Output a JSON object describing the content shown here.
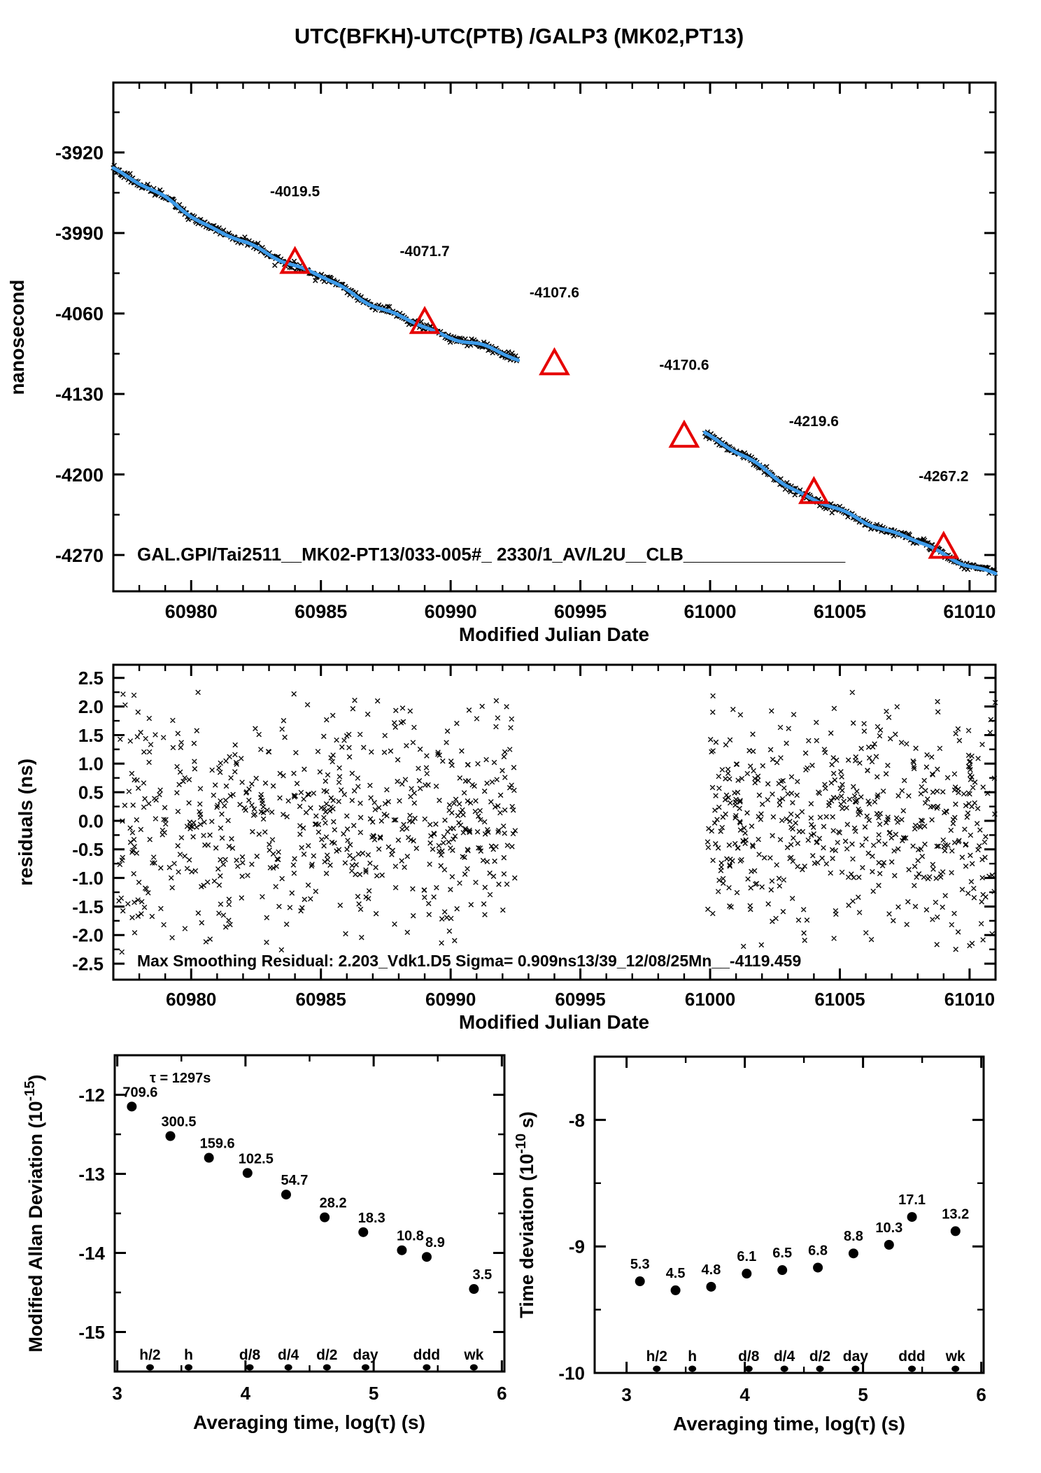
{
  "title": "UTC(BFKH)-UTC(PTB)  /GALP3  (MK02,PT13)",
  "colors": {
    "red": "#e60000",
    "trace_blue": "#3d9be9",
    "black": "#000000"
  },
  "chart_data": [
    {
      "id": "phase",
      "type": "line",
      "ylabel": "nanosecond",
      "xlabel": "Modified Julian Date",
      "xlim": [
        60977.0,
        61011.0
      ],
      "ylim": [
        -4301.6,
        -3859.2
      ],
      "xtick_values": [
        60980,
        60985,
        60990,
        60995,
        61000,
        61005,
        61010
      ],
      "xtick_labels": [
        "60980",
        "60985",
        "60990",
        "60995",
        "61000",
        "61005",
        "61010"
      ],
      "ytick_values": [
        -3920,
        -3990,
        -4060,
        -4130,
        -4200,
        -4270
      ],
      "ytick_labels": [
        "-3920",
        "-3990",
        "-4060",
        "-4130",
        "-4200",
        "-4270"
      ],
      "yminor_values": [
        -3885,
        -3955,
        -4025,
        -4095,
        -4165,
        -4235
      ],
      "annotation": "GAL.GPI/Tai2511__MK02-PT13/033-005#_  2330/1_AV/L2U__CLB________________",
      "segments": [
        {
          "t0": 60977.0,
          "t1": 60992.6,
          "v0": -3935.0,
          "slope": -13.2,
          "quad": 0.16
        },
        {
          "t0": 60999.8,
          "t1": 61011.0,
          "v0": -4165.0,
          "slope": -14.36,
          "quad": 0.324
        }
      ],
      "triangles": [
        {
          "mjd": 60984,
          "value": -4019.5,
          "label": "-4019.5"
        },
        {
          "mjd": 60989,
          "value": -4071.7,
          "label": "-4071.7"
        },
        {
          "mjd": 60994,
          "value": -4107.6,
          "label": "-4107.6"
        },
        {
          "mjd": 60999,
          "value": -4170.6,
          "label": "-4170.6"
        },
        {
          "mjd": 61004,
          "value": -4219.6,
          "label": "-4219.6"
        },
        {
          "mjd": 61009,
          "value": -4267.2,
          "label": "-4267.2"
        }
      ]
    },
    {
      "id": "residuals",
      "type": "scatter",
      "ylabel": "residuals (ns)",
      "xlabel": "Modified Julian Date",
      "xlim": [
        60977.0,
        61011.0
      ],
      "ylim": [
        -2.78,
        2.73
      ],
      "xtick_values": [
        60980,
        60985,
        60990,
        60995,
        61000,
        61005,
        61010
      ],
      "xtick_labels": [
        "60980",
        "60985",
        "60990",
        "60995",
        "61000",
        "61005",
        "61010"
      ],
      "ytick_values": [
        2.5,
        2.0,
        1.5,
        1.0,
        0.5,
        0.0,
        -0.5,
        -1.0,
        -1.5,
        -2.0,
        -2.5
      ],
      "ytick_labels": [
        "2.5",
        "2.0",
        "1.5",
        "1.0",
        "0.5",
        "0.0",
        "-0.5",
        "-1.0",
        "-1.5",
        "-2.0",
        "-2.5"
      ],
      "yminor_values": [
        2.25,
        1.75,
        1.25,
        0.75,
        0.25,
        -0.25,
        -0.75,
        -1.25,
        -1.75,
        -2.25
      ],
      "bands": [
        {
          "x0": 60977.2,
          "x1": 60992.5,
          "n": 640
        },
        {
          "x0": 60999.9,
          "x1": 61011.0,
          "n": 530
        }
      ],
      "sigma": 1.05,
      "clip": 2.3,
      "annotation": "Max Smoothing Residual: 2.203_Vdk1.D5  Sigma= 0.909ns13/39_12/08/25Mn__-4119.459"
    },
    {
      "id": "mdev",
      "type": "scatter",
      "ylabel_parts": [
        "Modified Allan Deviation (10",
        "-15",
        ")"
      ],
      "xlabel": "Averaging time, log(τ) (s)",
      "note": "τ = 1297s",
      "unit_exponent": -15,
      "xlim": [
        2.98,
        6.02
      ],
      "ylim": [
        -15.5,
        -11.5
      ],
      "xtick_values": [
        3,
        4,
        5,
        6
      ],
      "xtick_labels": [
        "3",
        "4",
        "5",
        "6"
      ],
      "xminor_values": [
        3.5,
        4.5,
        5.5
      ],
      "ytick_values": [
        -12,
        -13,
        -14,
        -15
      ],
      "ytick_labels": [
        "-12",
        "-13",
        "-14",
        "-15"
      ],
      "yminor_values": [
        -12.5,
        -13.5,
        -14.5
      ],
      "x": [
        3.113,
        3.414,
        3.715,
        4.016,
        4.317,
        4.618,
        4.919,
        5.22,
        5.414,
        5.782
      ],
      "values": [
        709.6,
        300.5,
        159.6,
        102.5,
        54.7,
        28.2,
        18.3,
        10.8,
        8.9,
        3.5
      ],
      "point_labels": [
        "709.6",
        "300.5",
        "159.6",
        "102.5",
        "54.7",
        "28.2",
        "18.3",
        "10.8",
        "8.9",
        "3.5"
      ],
      "tau_marks": [
        {
          "label": "h/2",
          "x": 3.2553
        },
        {
          "label": "h",
          "x": 3.5563
        },
        {
          "label": "d/8",
          "x": 4.0334
        },
        {
          "label": "d/4",
          "x": 4.3345
        },
        {
          "label": "d/2",
          "x": 4.6355
        },
        {
          "label": "day",
          "x": 4.9365
        },
        {
          "label": "ddd",
          "x": 5.4137
        },
        {
          "label": "wk",
          "x": 5.7817
        }
      ]
    },
    {
      "id": "tdev",
      "type": "scatter",
      "ylabel_parts": [
        "Time deviation (10",
        "-10",
        " s)"
      ],
      "xlabel": "Averaging time, log(τ) (s)",
      "unit_exponent": -10,
      "xlim": [
        2.73,
        6.02
      ],
      "ylim": [
        -10.0,
        -7.5
      ],
      "xtick_values": [
        3,
        4,
        5,
        6
      ],
      "xtick_labels": [
        "3",
        "4",
        "5",
        "6"
      ],
      "xminor_values": [
        3.5,
        4.5,
        5.5
      ],
      "ytick_values": [
        -8,
        -9,
        -10
      ],
      "ytick_labels": [
        "-8",
        "-9",
        "-10"
      ],
      "yminor_values": [
        -8.5,
        -9.5
      ],
      "x": [
        3.113,
        3.414,
        3.715,
        4.016,
        4.317,
        4.618,
        4.919,
        5.22,
        5.414,
        5.782
      ],
      "values": [
        5.3,
        4.5,
        4.8,
        6.1,
        6.5,
        6.8,
        8.8,
        10.3,
        17.1,
        13.2
      ],
      "point_labels": [
        "5.3",
        "4.5",
        "4.8",
        "6.1",
        "6.5",
        "6.8",
        "8.8",
        "10.3",
        "17.1",
        "13.2"
      ],
      "tau_marks": [
        {
          "label": "h/2",
          "x": 3.2553
        },
        {
          "label": "h",
          "x": 3.5563
        },
        {
          "label": "d/8",
          "x": 4.0334
        },
        {
          "label": "d/4",
          "x": 4.3345
        },
        {
          "label": "d/2",
          "x": 4.6355
        },
        {
          "label": "day",
          "x": 4.9365
        },
        {
          "label": "ddd",
          "x": 5.4137
        },
        {
          "label": "wk",
          "x": 5.7817
        }
      ]
    }
  ]
}
